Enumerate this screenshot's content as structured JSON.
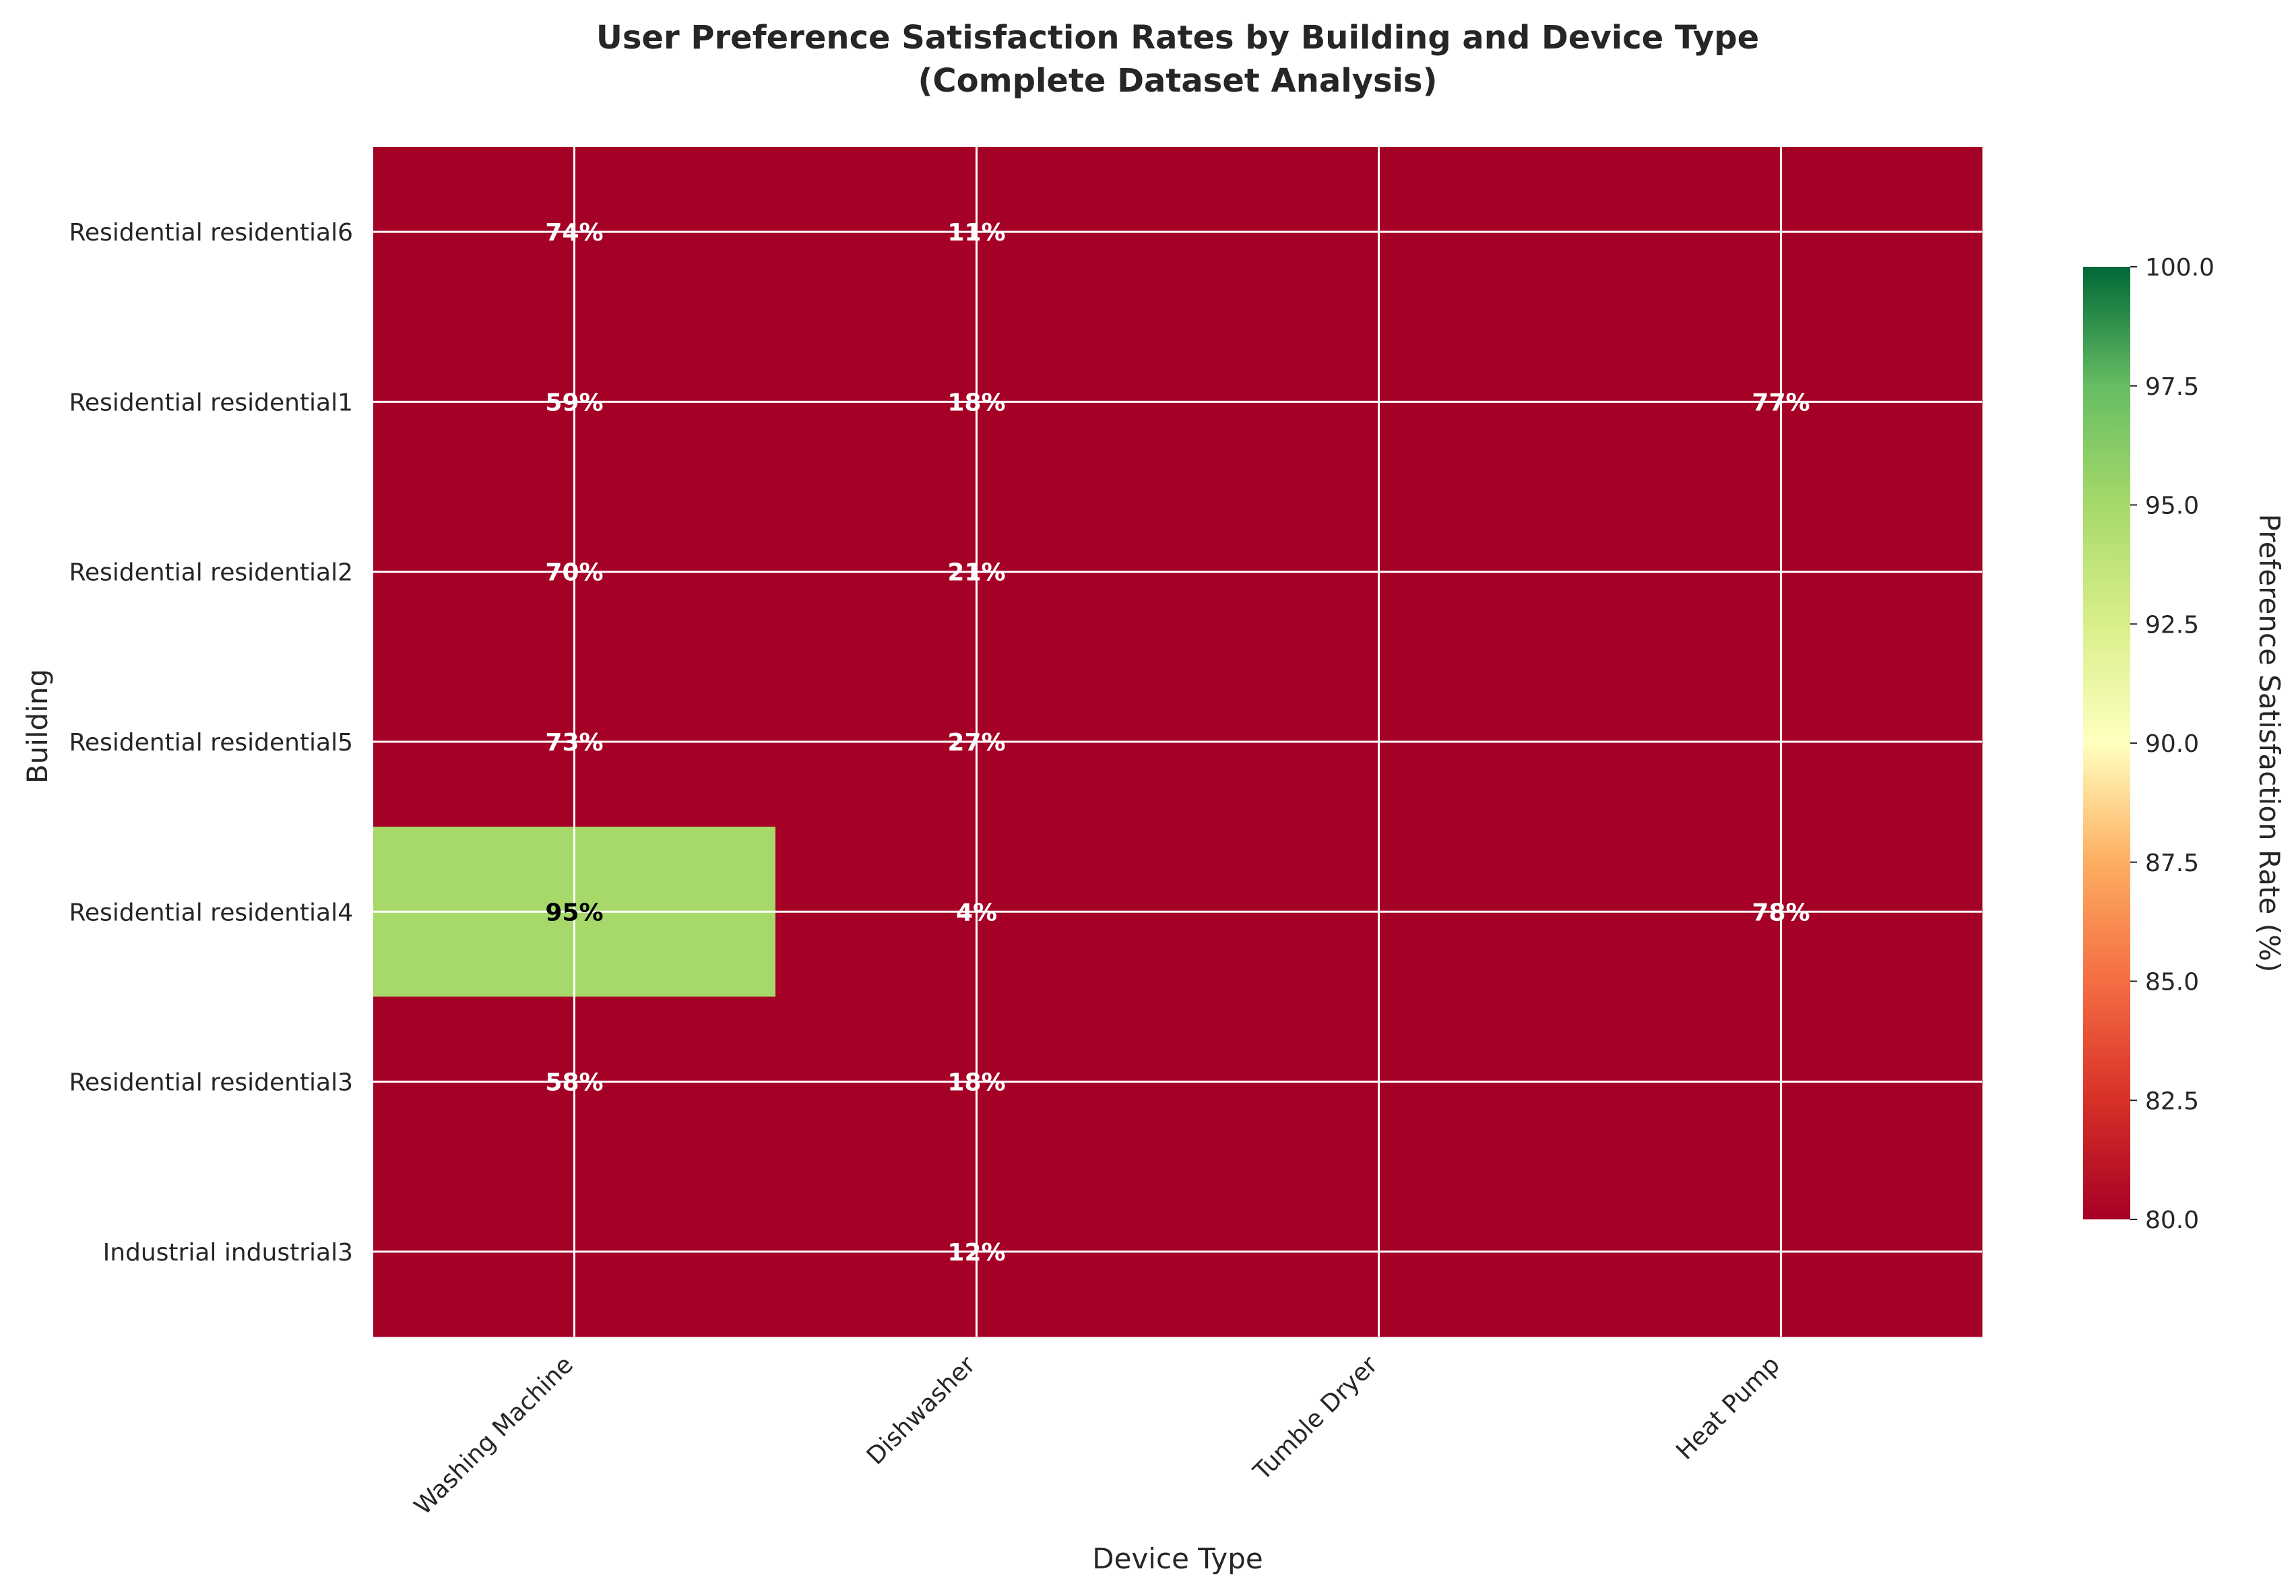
{
  "chart_data": {
    "type": "heatmap",
    "title_lines": [
      "User Preference Satisfaction Rates by Building and Device Type",
      "(Complete Dataset Analysis)"
    ],
    "xlabel": "Device Type",
    "ylabel": "Building",
    "x_categories": [
      "Washing Machine",
      "Dishwasher",
      "Tumble Dryer",
      "Heat Pump"
    ],
    "y_categories": [
      "Residential residential6",
      "Residential residential1",
      "Residential residential2",
      "Residential residential5",
      "Residential residential4",
      "Residential residential3",
      "Industrial industrial3"
    ],
    "values": [
      [
        74,
        11,
        null,
        null
      ],
      [
        59,
        18,
        null,
        77
      ],
      [
        70,
        21,
        null,
        null
      ],
      [
        73,
        27,
        null,
        null
      ],
      [
        95,
        4,
        null,
        78
      ],
      [
        58,
        18,
        null,
        null
      ],
      [
        null,
        12,
        null,
        null
      ]
    ],
    "cell_labels": [
      [
        "74%",
        "11%",
        "",
        ""
      ],
      [
        "59%",
        "18%",
        "",
        "77%"
      ],
      [
        "70%",
        "21%",
        "",
        ""
      ],
      [
        "73%",
        "27%",
        "",
        ""
      ],
      [
        "95%",
        "4%",
        "",
        "78%"
      ],
      [
        "58%",
        "18%",
        "",
        ""
      ],
      [
        "",
        "12%",
        "",
        ""
      ]
    ],
    "empty_cell_value": 0,
    "colormap": "RdYlGn",
    "color_range": [
      80,
      100
    ],
    "colorbar": {
      "label": "Preference Satisfaction Rate (%)",
      "ticks": [
        80,
        82.5,
        85,
        87.5,
        90,
        92.5,
        95,
        97.5,
        100
      ],
      "tick_labels": [
        "80.0",
        "82.5",
        "85.0",
        "87.5",
        "90.0",
        "92.5",
        "95.0",
        "97.5",
        "100.0"
      ]
    },
    "grid": true
  }
}
